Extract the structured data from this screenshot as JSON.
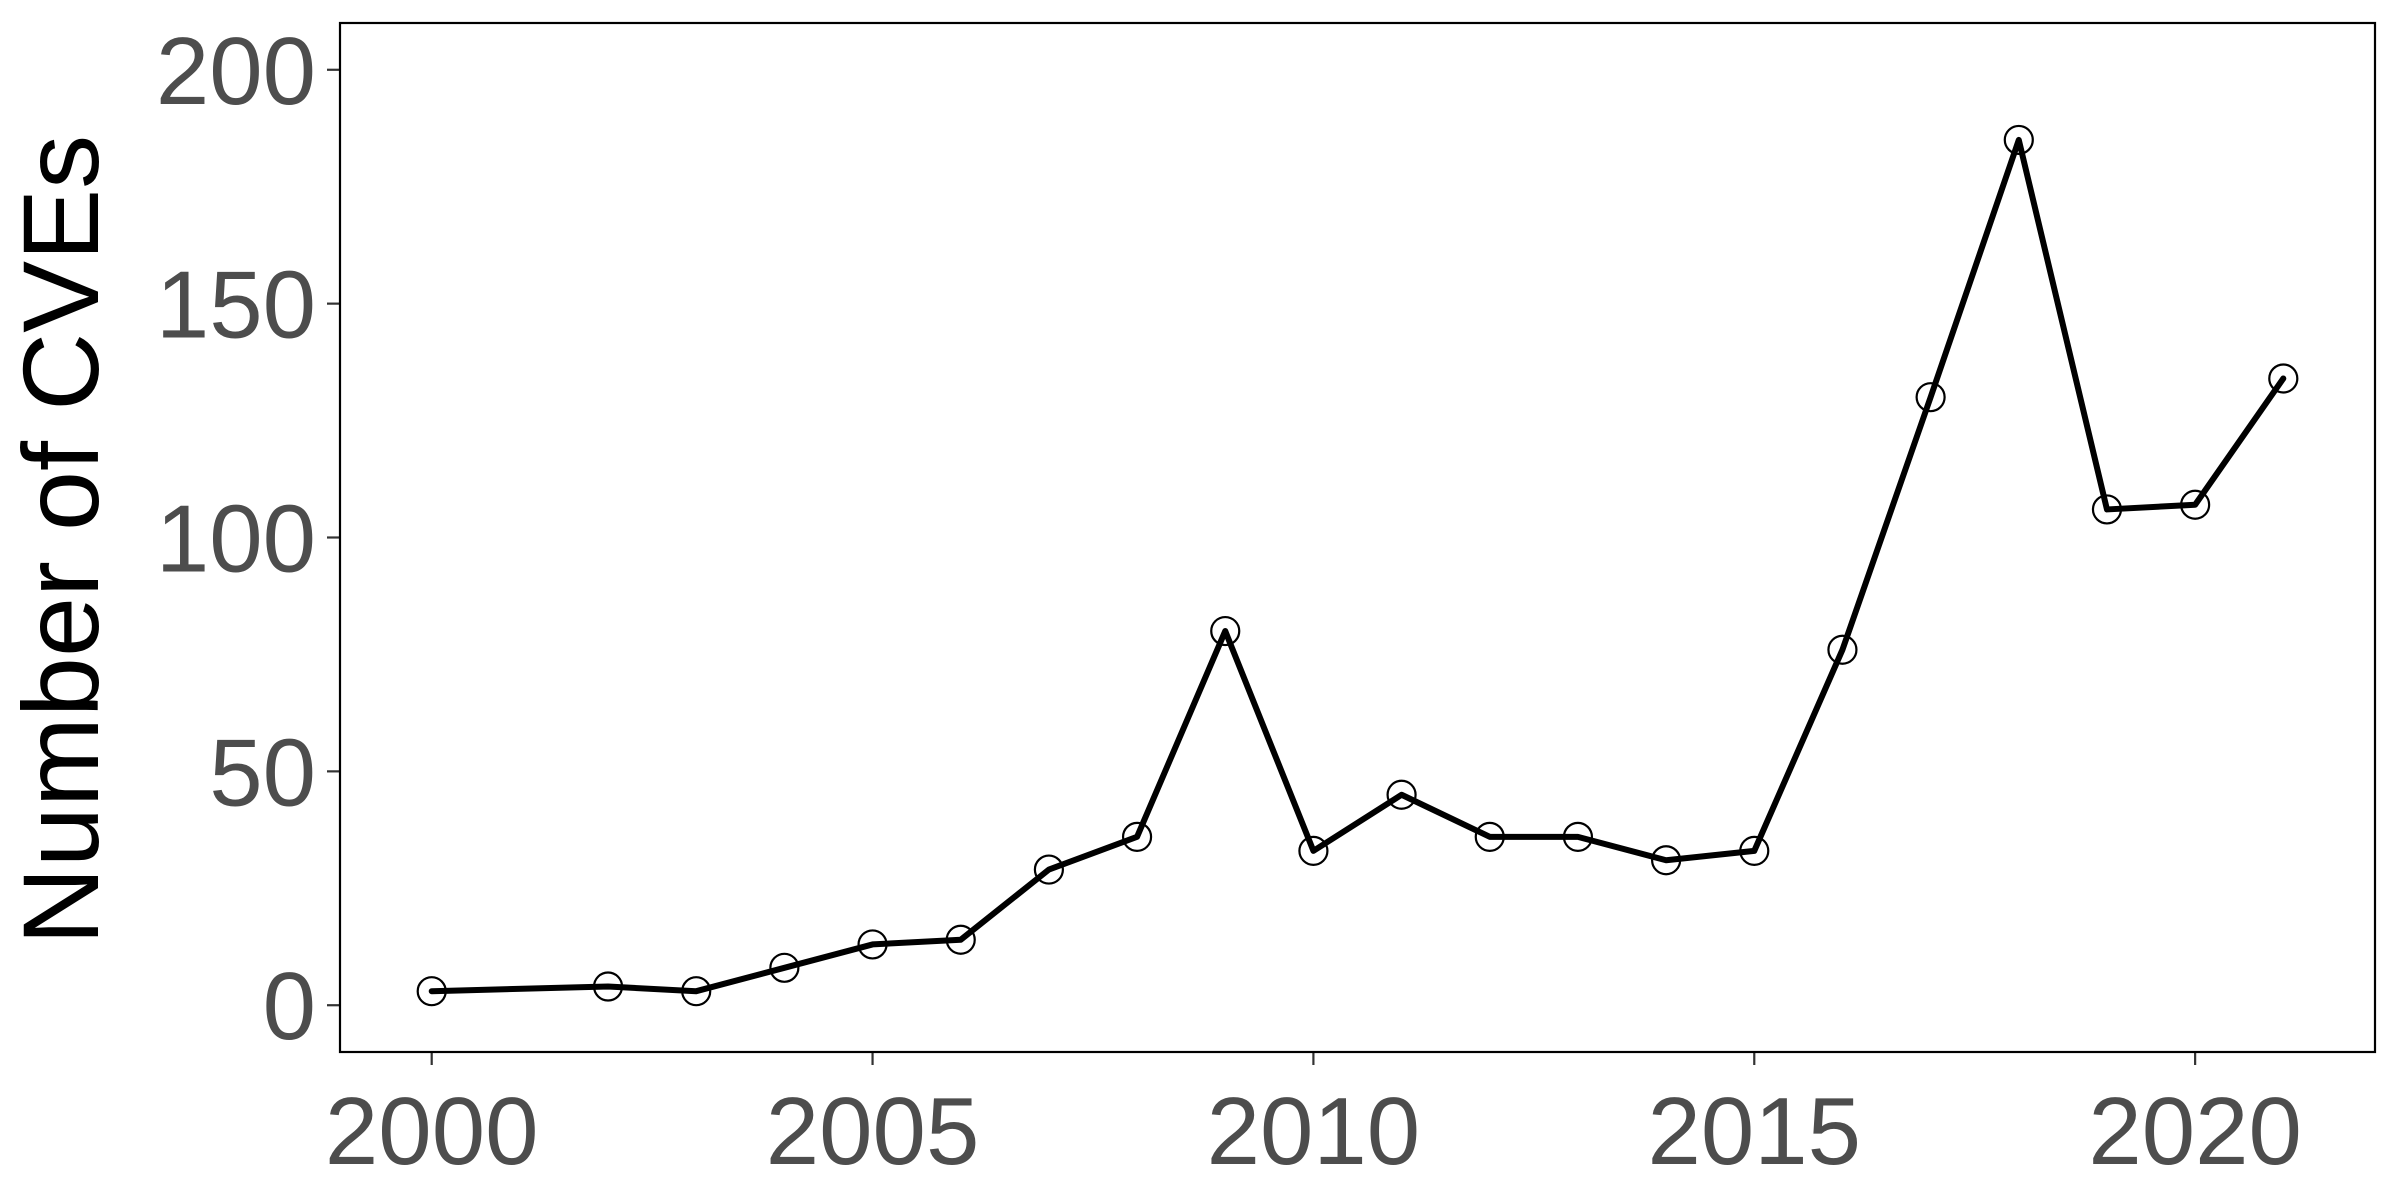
{
  "chart_data": {
    "type": "line",
    "title": "",
    "xlabel": "",
    "ylabel": "Number of CVEs",
    "xlim": [
      1998.96,
      2022.04
    ],
    "ylim": [
      -10,
      210
    ],
    "xticks": [
      2000,
      2005,
      2010,
      2015,
      2020
    ],
    "yticks": [
      0,
      50,
      100,
      150,
      200
    ],
    "grid": false,
    "legend": "none",
    "marker": "open-circle",
    "line_color": "#000000",
    "tick_label_color": "#4d4d4d",
    "series": [
      {
        "x": [
          2000,
          2002,
          2003,
          2004,
          2005,
          2006,
          2007,
          2008,
          2009,
          2010,
          2011,
          2012,
          2013,
          2014,
          2015,
          2016,
          2017,
          2018,
          2019,
          2020,
          2021
        ],
        "values": [
          3,
          4,
          3,
          8,
          13,
          14,
          29,
          36,
          80,
          33,
          45,
          36,
          36,
          31,
          33,
          76,
          130,
          185,
          106,
          107,
          134
        ]
      }
    ]
  }
}
